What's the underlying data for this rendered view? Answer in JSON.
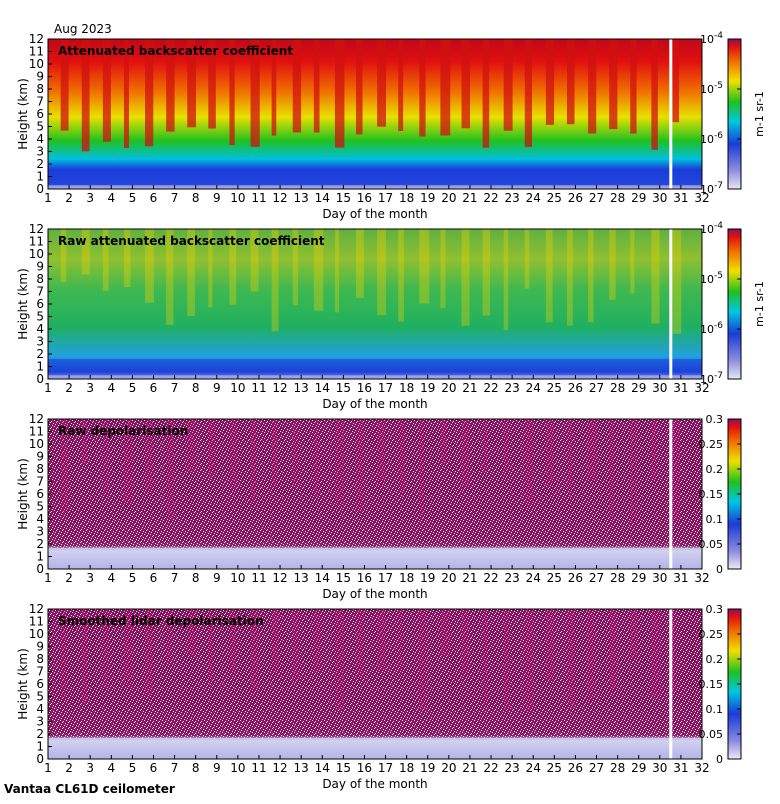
{
  "date_label": "Aug 2023",
  "site_label": "Vantaa CL61D ceilometer",
  "colors": {
    "bg_low": "#c8c8e8",
    "blue": "#1a3cd8",
    "cyan": "#00c8e0",
    "green": "#20c020",
    "yellow": "#f0e000",
    "orange": "#f07000",
    "red": "#e01010",
    "purple": "#8a1060"
  },
  "chart_data": [
    {
      "type": "heatmap",
      "title": "Attenuated backscatter coefficient",
      "xlabel": "Day of the month",
      "ylabel": "Height (km)",
      "xlim": [
        1,
        32
      ],
      "ylim": [
        0,
        12
      ],
      "x_ticks": [
        1,
        2,
        3,
        4,
        5,
        6,
        7,
        8,
        9,
        10,
        11,
        12,
        13,
        14,
        15,
        16,
        17,
        18,
        19,
        20,
        21,
        22,
        23,
        24,
        25,
        26,
        27,
        28,
        29,
        30,
        31,
        32
      ],
      "y_ticks": [
        0,
        1,
        2,
        3,
        4,
        5,
        6,
        7,
        8,
        9,
        10,
        11,
        12
      ],
      "colorbar": {
        "scale": "log",
        "range": [
          1e-07,
          0.0001
        ],
        "tick_labels": [
          "10-7",
          "10-6",
          "10-5",
          "10-4"
        ],
        "tick_values": [
          1e-07,
          1e-06,
          1e-05,
          0.0001
        ],
        "units": "m-1 sr-1"
      }
    },
    {
      "type": "heatmap",
      "title": "Raw attenuated backscatter coefficient",
      "xlabel": "Day of the month",
      "ylabel": "Height (km)",
      "xlim": [
        1,
        32
      ],
      "ylim": [
        0,
        12
      ],
      "x_ticks": [
        1,
        2,
        3,
        4,
        5,
        6,
        7,
        8,
        9,
        10,
        11,
        12,
        13,
        14,
        15,
        16,
        17,
        18,
        19,
        20,
        21,
        22,
        23,
        24,
        25,
        26,
        27,
        28,
        29,
        30,
        31,
        32
      ],
      "y_ticks": [
        0,
        1,
        2,
        3,
        4,
        5,
        6,
        7,
        8,
        9,
        10,
        11,
        12
      ],
      "colorbar": {
        "scale": "log",
        "range": [
          1e-07,
          0.0001
        ],
        "tick_labels": [
          "10-7",
          "10-6",
          "10-5",
          "10-4"
        ],
        "tick_values": [
          1e-07,
          1e-06,
          1e-05,
          0.0001
        ],
        "units": "m-1 sr-1"
      }
    },
    {
      "type": "heatmap",
      "title": "Raw depolarisation",
      "xlabel": "Day of the month",
      "ylabel": "Height (km)",
      "xlim": [
        1,
        32
      ],
      "ylim": [
        0,
        12
      ],
      "x_ticks": [
        1,
        2,
        3,
        4,
        5,
        6,
        7,
        8,
        9,
        10,
        11,
        12,
        13,
        14,
        15,
        16,
        17,
        18,
        19,
        20,
        21,
        22,
        23,
        24,
        25,
        26,
        27,
        28,
        29,
        30,
        31,
        32
      ],
      "y_ticks": [
        0,
        1,
        2,
        3,
        4,
        5,
        6,
        7,
        8,
        9,
        10,
        11,
        12
      ],
      "colorbar": {
        "scale": "linear",
        "range": [
          0,
          0.3
        ],
        "tick_labels": [
          "0",
          "0.05",
          "0.1",
          "0.15",
          "0.2",
          "0.25",
          "0.3"
        ],
        "tick_values": [
          0,
          0.05,
          0.1,
          0.15,
          0.2,
          0.25,
          0.3
        ],
        "units": ""
      }
    },
    {
      "type": "heatmap",
      "title": "Smoothed lidar depolarisation",
      "xlabel": "Day of the month",
      "ylabel": "Height (km)",
      "xlim": [
        1,
        32
      ],
      "ylim": [
        0,
        12
      ],
      "x_ticks": [
        1,
        2,
        3,
        4,
        5,
        6,
        7,
        8,
        9,
        10,
        11,
        12,
        13,
        14,
        15,
        16,
        17,
        18,
        19,
        20,
        21,
        22,
        23,
        24,
        25,
        26,
        27,
        28,
        29,
        30,
        31,
        32
      ],
      "y_ticks": [
        0,
        1,
        2,
        3,
        4,
        5,
        6,
        7,
        8,
        9,
        10,
        11,
        12
      ],
      "colorbar": {
        "scale": "linear",
        "range": [
          0,
          0.3
        ],
        "tick_labels": [
          "0",
          "0.05",
          "0.1",
          "0.15",
          "0.2",
          "0.25",
          "0.3"
        ],
        "tick_values": [
          0,
          0.05,
          0.1,
          0.15,
          0.2,
          0.25,
          0.3
        ],
        "units": ""
      }
    }
  ]
}
